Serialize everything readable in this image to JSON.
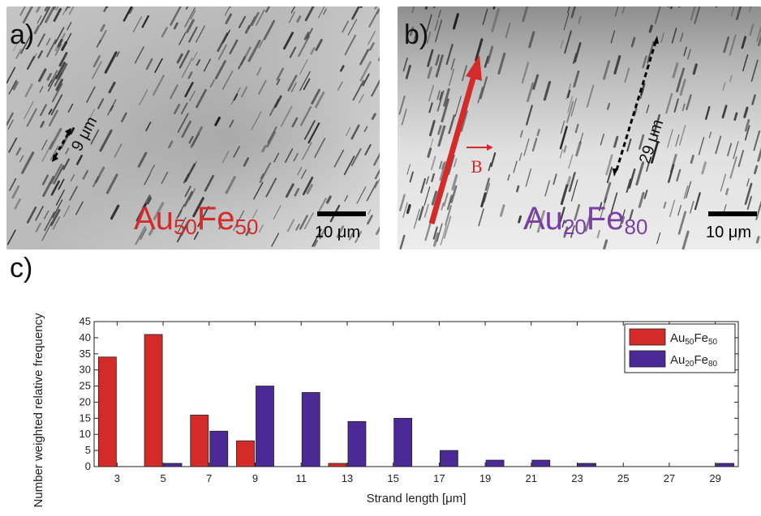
{
  "panel_a": {
    "letter": "a)",
    "alloy": {
      "el1": "Au",
      "n1": "50",
      "el2": "Fe",
      "n2": "50",
      "color": "#d42a2a"
    },
    "distance": "9 μm",
    "scale": "10 μm"
  },
  "panel_b": {
    "letter": "b)",
    "alloy": {
      "el1": "Au",
      "n1": "20",
      "el2": "Fe",
      "n2": "80",
      "color": "#7b3fa3"
    },
    "distance": "29 μm",
    "field_label": "B",
    "scale": "10 μm"
  },
  "panel_c": {
    "letter": "c)"
  },
  "chart_data": {
    "type": "bar",
    "xlabel": "Strand length [μm]",
    "ylabel": "Number weighted relative frequency",
    "ylim": [
      0,
      45
    ],
    "yticks": [
      0,
      5,
      10,
      15,
      20,
      25,
      30,
      35,
      40,
      45
    ],
    "categories": [
      "3",
      "5",
      "7",
      "9",
      "11",
      "13",
      "15",
      "17",
      "19",
      "21",
      "23",
      "25",
      "27",
      "29"
    ],
    "legend_position": "top-right",
    "grid": false,
    "series": [
      {
        "name": "Au50Fe50",
        "label": {
          "el1": "Au",
          "n1": "50",
          "el2": "Fe",
          "n2": "50"
        },
        "color": "#d42a2a",
        "values": [
          34,
          41,
          16,
          8,
          0,
          1,
          0,
          0,
          0,
          0,
          0,
          0,
          0,
          0
        ]
      },
      {
        "name": "Au20Fe80",
        "label": {
          "el1": "Au",
          "n1": "20",
          "el2": "Fe",
          "n2": "80"
        },
        "color": "#4b2a96",
        "values": [
          0,
          1,
          11,
          25,
          23,
          14,
          15,
          5,
          2,
          2,
          1,
          0,
          0,
          1
        ]
      }
    ]
  }
}
